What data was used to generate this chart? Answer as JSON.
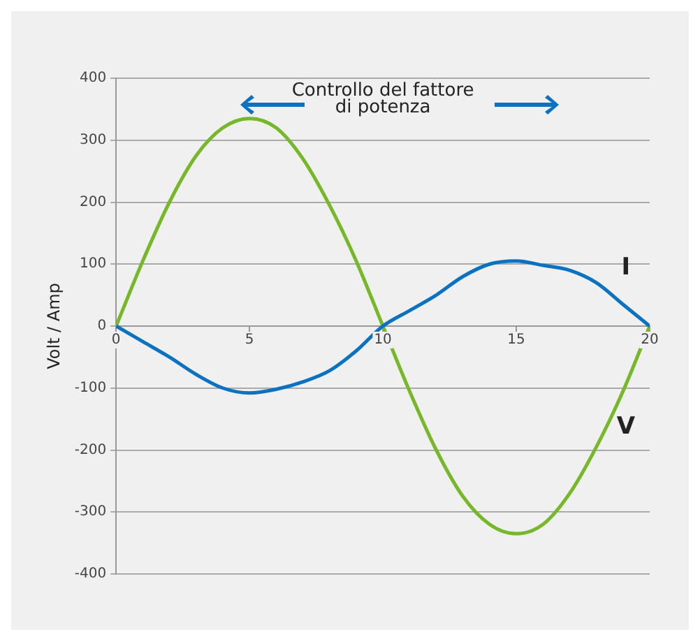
{
  "chart_data": {
    "type": "line",
    "ylabel": "Volt / Amp",
    "annotations": [
      "Controllo del fattore\ndi potenza"
    ],
    "x": [
      0,
      1,
      2,
      3,
      4,
      5,
      6,
      7,
      8,
      9,
      10,
      11,
      12,
      13,
      14,
      15,
      16,
      17,
      18,
      19,
      20
    ],
    "series": [
      {
        "name": "I",
        "color": "#0a72c0",
        "values": [
          0,
          -25,
          -50,
          -78,
          -100,
          -108,
          -102,
          -90,
          -72,
          -40,
          0,
          25,
          50,
          80,
          100,
          105,
          98,
          90,
          70,
          35,
          0
        ]
      },
      {
        "name": "V",
        "color": "#76b82a",
        "values": [
          0,
          105,
          200,
          275,
          320,
          335,
          320,
          270,
          195,
          105,
          0,
          -105,
          -200,
          -275,
          -320,
          -335,
          -320,
          -270,
          -195,
          -105,
          0
        ]
      }
    ],
    "xlim": [
      0,
      20
    ],
    "xticks": [
      0,
      5,
      10,
      15,
      20
    ],
    "ylim": [
      -400,
      400
    ],
    "yticks": [
      -400,
      -300,
      -200,
      -100,
      0,
      100,
      200,
      300,
      400
    ],
    "grid": "y",
    "legend": false,
    "marker": "none",
    "line_style": "solid"
  }
}
